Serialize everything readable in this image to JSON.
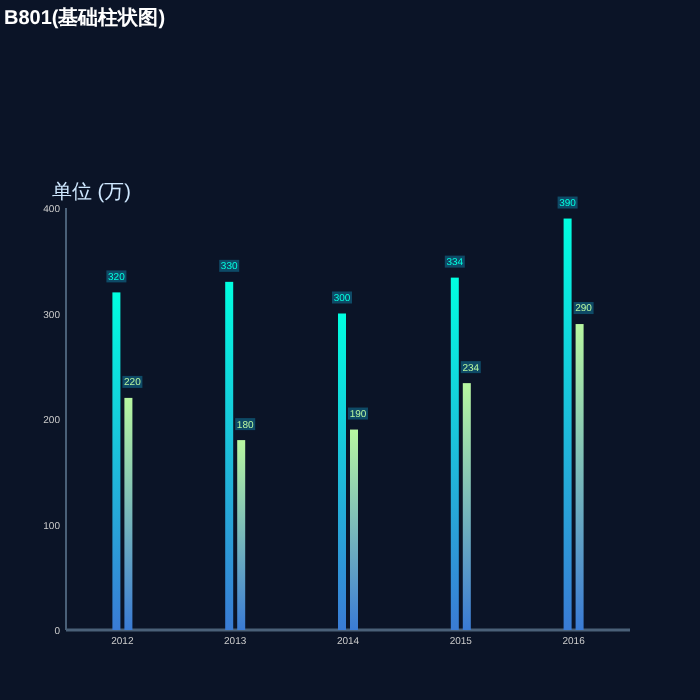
{
  "chart_data": {
    "type": "bar",
    "title": "B801(基础柱状图)",
    "ylabel": "单位 (万)",
    "categories": [
      "2012",
      "2013",
      "2014",
      "2015",
      "2016"
    ],
    "series": [
      {
        "color": "#00ffe0",
        "values": [
          320,
          330,
          300,
          334,
          390
        ]
      },
      {
        "color": "#b8f7a0",
        "values": [
          220,
          180,
          190,
          234,
          290
        ]
      }
    ],
    "ylim": [
      0,
      400
    ],
    "yticks": [
      0,
      100,
      200,
      300,
      400
    ],
    "grid": false,
    "data_labels": true
  }
}
